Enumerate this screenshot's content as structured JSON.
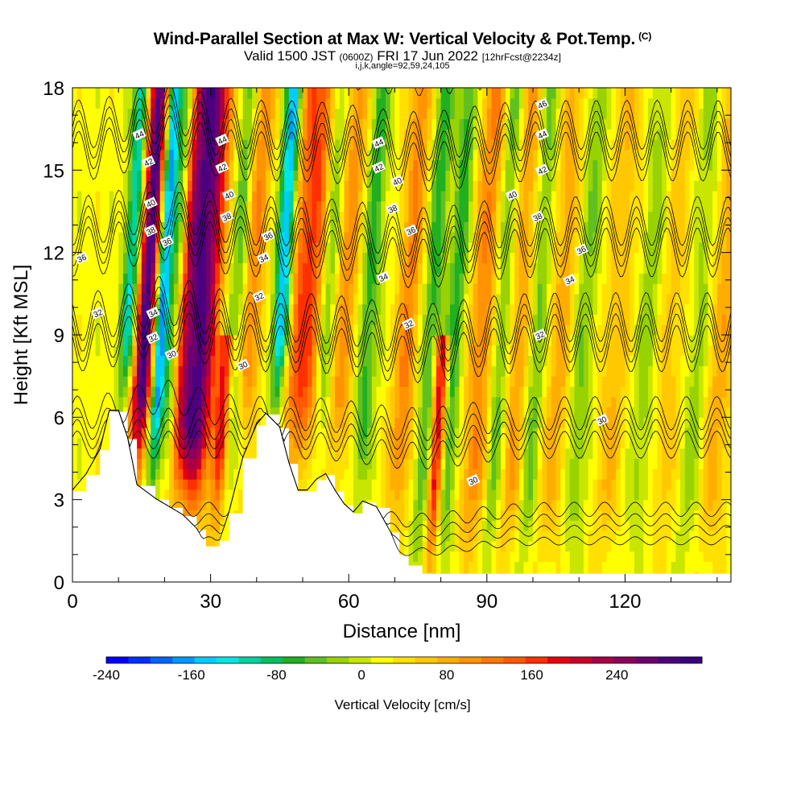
{
  "header": {
    "title": "Wind-Parallel Section at Max W: Vertical Velocity & Pot.Temp.",
    "copyright": "(C)",
    "valid_prefix": "Valid 1500 JST",
    "valid_utc": "(0600Z)",
    "valid_date": "FRI 17 Jun 2022",
    "forecast": "[12hrFcst@2234z]",
    "section_params": "i,j,k,angle=92,59,24,105"
  },
  "chart_data": {
    "type": "heatmap",
    "xlabel": "Distance [nm]",
    "ylabel": "Height [Kft MSL]",
    "xlim": [
      0,
      143
    ],
    "ylim": [
      0,
      18
    ],
    "x_ticks": [
      "0",
      "30",
      "60",
      "90",
      "120"
    ],
    "y_ticks": [
      "0",
      "3",
      "6",
      "9",
      "12",
      "15",
      "18"
    ],
    "colorbar": {
      "label": "Vertical Velocity [cm/s]",
      "min": -240,
      "max": 300,
      "step": 20,
      "tick_labels": [
        "-240",
        "-160",
        "-80",
        "0",
        "80",
        "160",
        "240"
      ],
      "colors": [
        "#0000ff",
        "#0030ff",
        "#0066ff",
        "#0099ff",
        "#00ccff",
        "#00e6e6",
        "#00d2a0",
        "#00c060",
        "#20b020",
        "#60c020",
        "#98d200",
        "#c8e600",
        "#ffff00",
        "#ffe000",
        "#ffc800",
        "#ffae00",
        "#ff9400",
        "#ff7800",
        "#ff5a00",
        "#ff3000",
        "#e80010",
        "#c80028",
        "#a80046",
        "#8c005a",
        "#6c0070",
        "#4c0080",
        "#380080"
      ]
    },
    "updrafts": [
      {
        "x": 14,
        "w": 2.5,
        "peak": 280,
        "ztop": 18
      },
      {
        "x": 23,
        "w": 3.5,
        "peak": 190,
        "ztop": 18
      },
      {
        "x": 26.5,
        "w": 3,
        "peak": 170,
        "ztop": 18
      },
      {
        "x": 31,
        "w": 1.6,
        "peak": 170,
        "ztop": 9
      },
      {
        "x": 37,
        "w": 2.5,
        "peak": 90,
        "ztop": 18
      },
      {
        "x": 47,
        "w": 2.5,
        "peak": 90,
        "ztop": 18
      },
      {
        "x": 50,
        "w": 3,
        "peak": 110,
        "ztop": 18
      },
      {
        "x": 57,
        "w": 2.5,
        "peak": 80,
        "ztop": 18
      },
      {
        "x": 70,
        "w": 2.5,
        "peak": 90,
        "ztop": 18
      },
      {
        "x": 77.5,
        "w": 1.5,
        "peak": 200,
        "ztop": 9
      },
      {
        "x": 86,
        "w": 3,
        "peak": 90,
        "ztop": 18
      },
      {
        "x": 94,
        "w": 2.5,
        "peak": 70,
        "ztop": 18
      },
      {
        "x": 103,
        "w": 3,
        "peak": 60,
        "ztop": 18
      },
      {
        "x": 115,
        "w": 3,
        "peak": 50,
        "ztop": 18
      },
      {
        "x": 127,
        "w": 3,
        "peak": 40,
        "ztop": 18
      },
      {
        "x": 138,
        "w": 3,
        "peak": 60,
        "ztop": 18
      }
    ],
    "downdrafts": [
      {
        "x": 11,
        "w": 1.8,
        "peak": -150,
        "ztop": 18
      },
      {
        "x": 17,
        "w": 1.8,
        "peak": -230,
        "ztop": 18
      },
      {
        "x": 20,
        "w": 1.4,
        "peak": -110,
        "ztop": 18
      },
      {
        "x": 33,
        "w": 2,
        "peak": -70,
        "ztop": 18
      },
      {
        "x": 44,
        "w": 1.8,
        "peak": -180,
        "ztop": 18
      },
      {
        "x": 53,
        "w": 2,
        "peak": -80,
        "ztop": 18
      },
      {
        "x": 62,
        "w": 2,
        "peak": -80,
        "ztop": 18
      },
      {
        "x": 75,
        "w": 2,
        "peak": -80,
        "ztop": 18
      },
      {
        "x": 80,
        "w": 2,
        "peak": -80,
        "ztop": 18
      },
      {
        "x": 90,
        "w": 2,
        "peak": -70,
        "ztop": 18
      },
      {
        "x": 98,
        "w": 2,
        "peak": -60,
        "ztop": 18
      },
      {
        "x": 108,
        "w": 2.5,
        "peak": -50,
        "ztop": 18
      },
      {
        "x": 122,
        "w": 2.5,
        "peak": -40,
        "ztop": 18
      },
      {
        "x": 133,
        "w": 2.5,
        "peak": -40,
        "ztop": 18
      }
    ],
    "terrain": [
      [
        0,
        3.3
      ],
      [
        3,
        3.9
      ],
      [
        6,
        4.8
      ],
      [
        8,
        6.2
      ],
      [
        10,
        6.2
      ],
      [
        12,
        5.2
      ],
      [
        14,
        3.5
      ],
      [
        18,
        3.0
      ],
      [
        21,
        2.7
      ],
      [
        24,
        2.4
      ],
      [
        27,
        1.9
      ],
      [
        29,
        1.3
      ],
      [
        32,
        1.5
      ],
      [
        34,
        2.5
      ],
      [
        37,
        4.5
      ],
      [
        40,
        5.7
      ],
      [
        42,
        6.1
      ],
      [
        45,
        5.6
      ],
      [
        47,
        4.3
      ],
      [
        49,
        3.3
      ],
      [
        51,
        3.3
      ],
      [
        53,
        3.7
      ],
      [
        55,
        3.9
      ],
      [
        57,
        3.3
      ],
      [
        59,
        2.8
      ],
      [
        61,
        2.5
      ],
      [
        63,
        2.9
      ],
      [
        66,
        2.7
      ],
      [
        69,
        1.8
      ],
      [
        71,
        1.0
      ],
      [
        73,
        0.6
      ],
      [
        76,
        0.3
      ],
      [
        143,
        0.3
      ]
    ],
    "theta_contours": [
      30,
      32,
      34,
      36,
      38,
      40,
      42,
      44,
      46
    ],
    "theta_labels": [
      {
        "x": 14.5,
        "z": 16.3,
        "text": "44"
      },
      {
        "x": 16.5,
        "z": 15.3,
        "text": "42"
      },
      {
        "x": 17.0,
        "z": 13.8,
        "text": "40"
      },
      {
        "x": 17.0,
        "z": 12.8,
        "text": "38"
      },
      {
        "x": 20.5,
        "z": 12.4,
        "text": "36"
      },
      {
        "x": 2.0,
        "z": 11.8,
        "text": "36"
      },
      {
        "x": 5.5,
        "z": 9.8,
        "text": "32"
      },
      {
        "x": 17.5,
        "z": 9.8,
        "text": "34"
      },
      {
        "x": 17.5,
        "z": 8.9,
        "text": "32"
      },
      {
        "x": 21.5,
        "z": 8.3,
        "text": "30"
      },
      {
        "x": 32.5,
        "z": 16.1,
        "text": "44"
      },
      {
        "x": 32.5,
        "z": 15.1,
        "text": "42"
      },
      {
        "x": 34.0,
        "z": 14.1,
        "text": "40"
      },
      {
        "x": 33.5,
        "z": 13.3,
        "text": "38"
      },
      {
        "x": 42.5,
        "z": 12.6,
        "text": "36"
      },
      {
        "x": 41.5,
        "z": 11.8,
        "text": "34"
      },
      {
        "x": 40.5,
        "z": 10.4,
        "text": "32"
      },
      {
        "x": 37.0,
        "z": 7.9,
        "text": "30"
      },
      {
        "x": 66.5,
        "z": 16.0,
        "text": "44"
      },
      {
        "x": 66.5,
        "z": 15.1,
        "text": "42"
      },
      {
        "x": 70.5,
        "z": 14.6,
        "text": "40"
      },
      {
        "x": 69.5,
        "z": 13.6,
        "text": "38"
      },
      {
        "x": 73.5,
        "z": 12.8,
        "text": "36"
      },
      {
        "x": 67.5,
        "z": 11.1,
        "text": "34"
      },
      {
        "x": 73.0,
        "z": 9.4,
        "text": "32"
      },
      {
        "x": 102.0,
        "z": 17.4,
        "text": "46"
      },
      {
        "x": 102.0,
        "z": 16.3,
        "text": "44"
      },
      {
        "x": 102.0,
        "z": 15.0,
        "text": "42"
      },
      {
        "x": 95.5,
        "z": 14.1,
        "text": "40"
      },
      {
        "x": 101.0,
        "z": 13.3,
        "text": "38"
      },
      {
        "x": 110.5,
        "z": 12.1,
        "text": "36"
      },
      {
        "x": 108.0,
        "z": 11.0,
        "text": "34"
      },
      {
        "x": 101.5,
        "z": 9.0,
        "text": "32"
      },
      {
        "x": 115.0,
        "z": 5.9,
        "text": "30"
      },
      {
        "x": 87.0,
        "z": 3.7,
        "text": "30"
      }
    ]
  }
}
